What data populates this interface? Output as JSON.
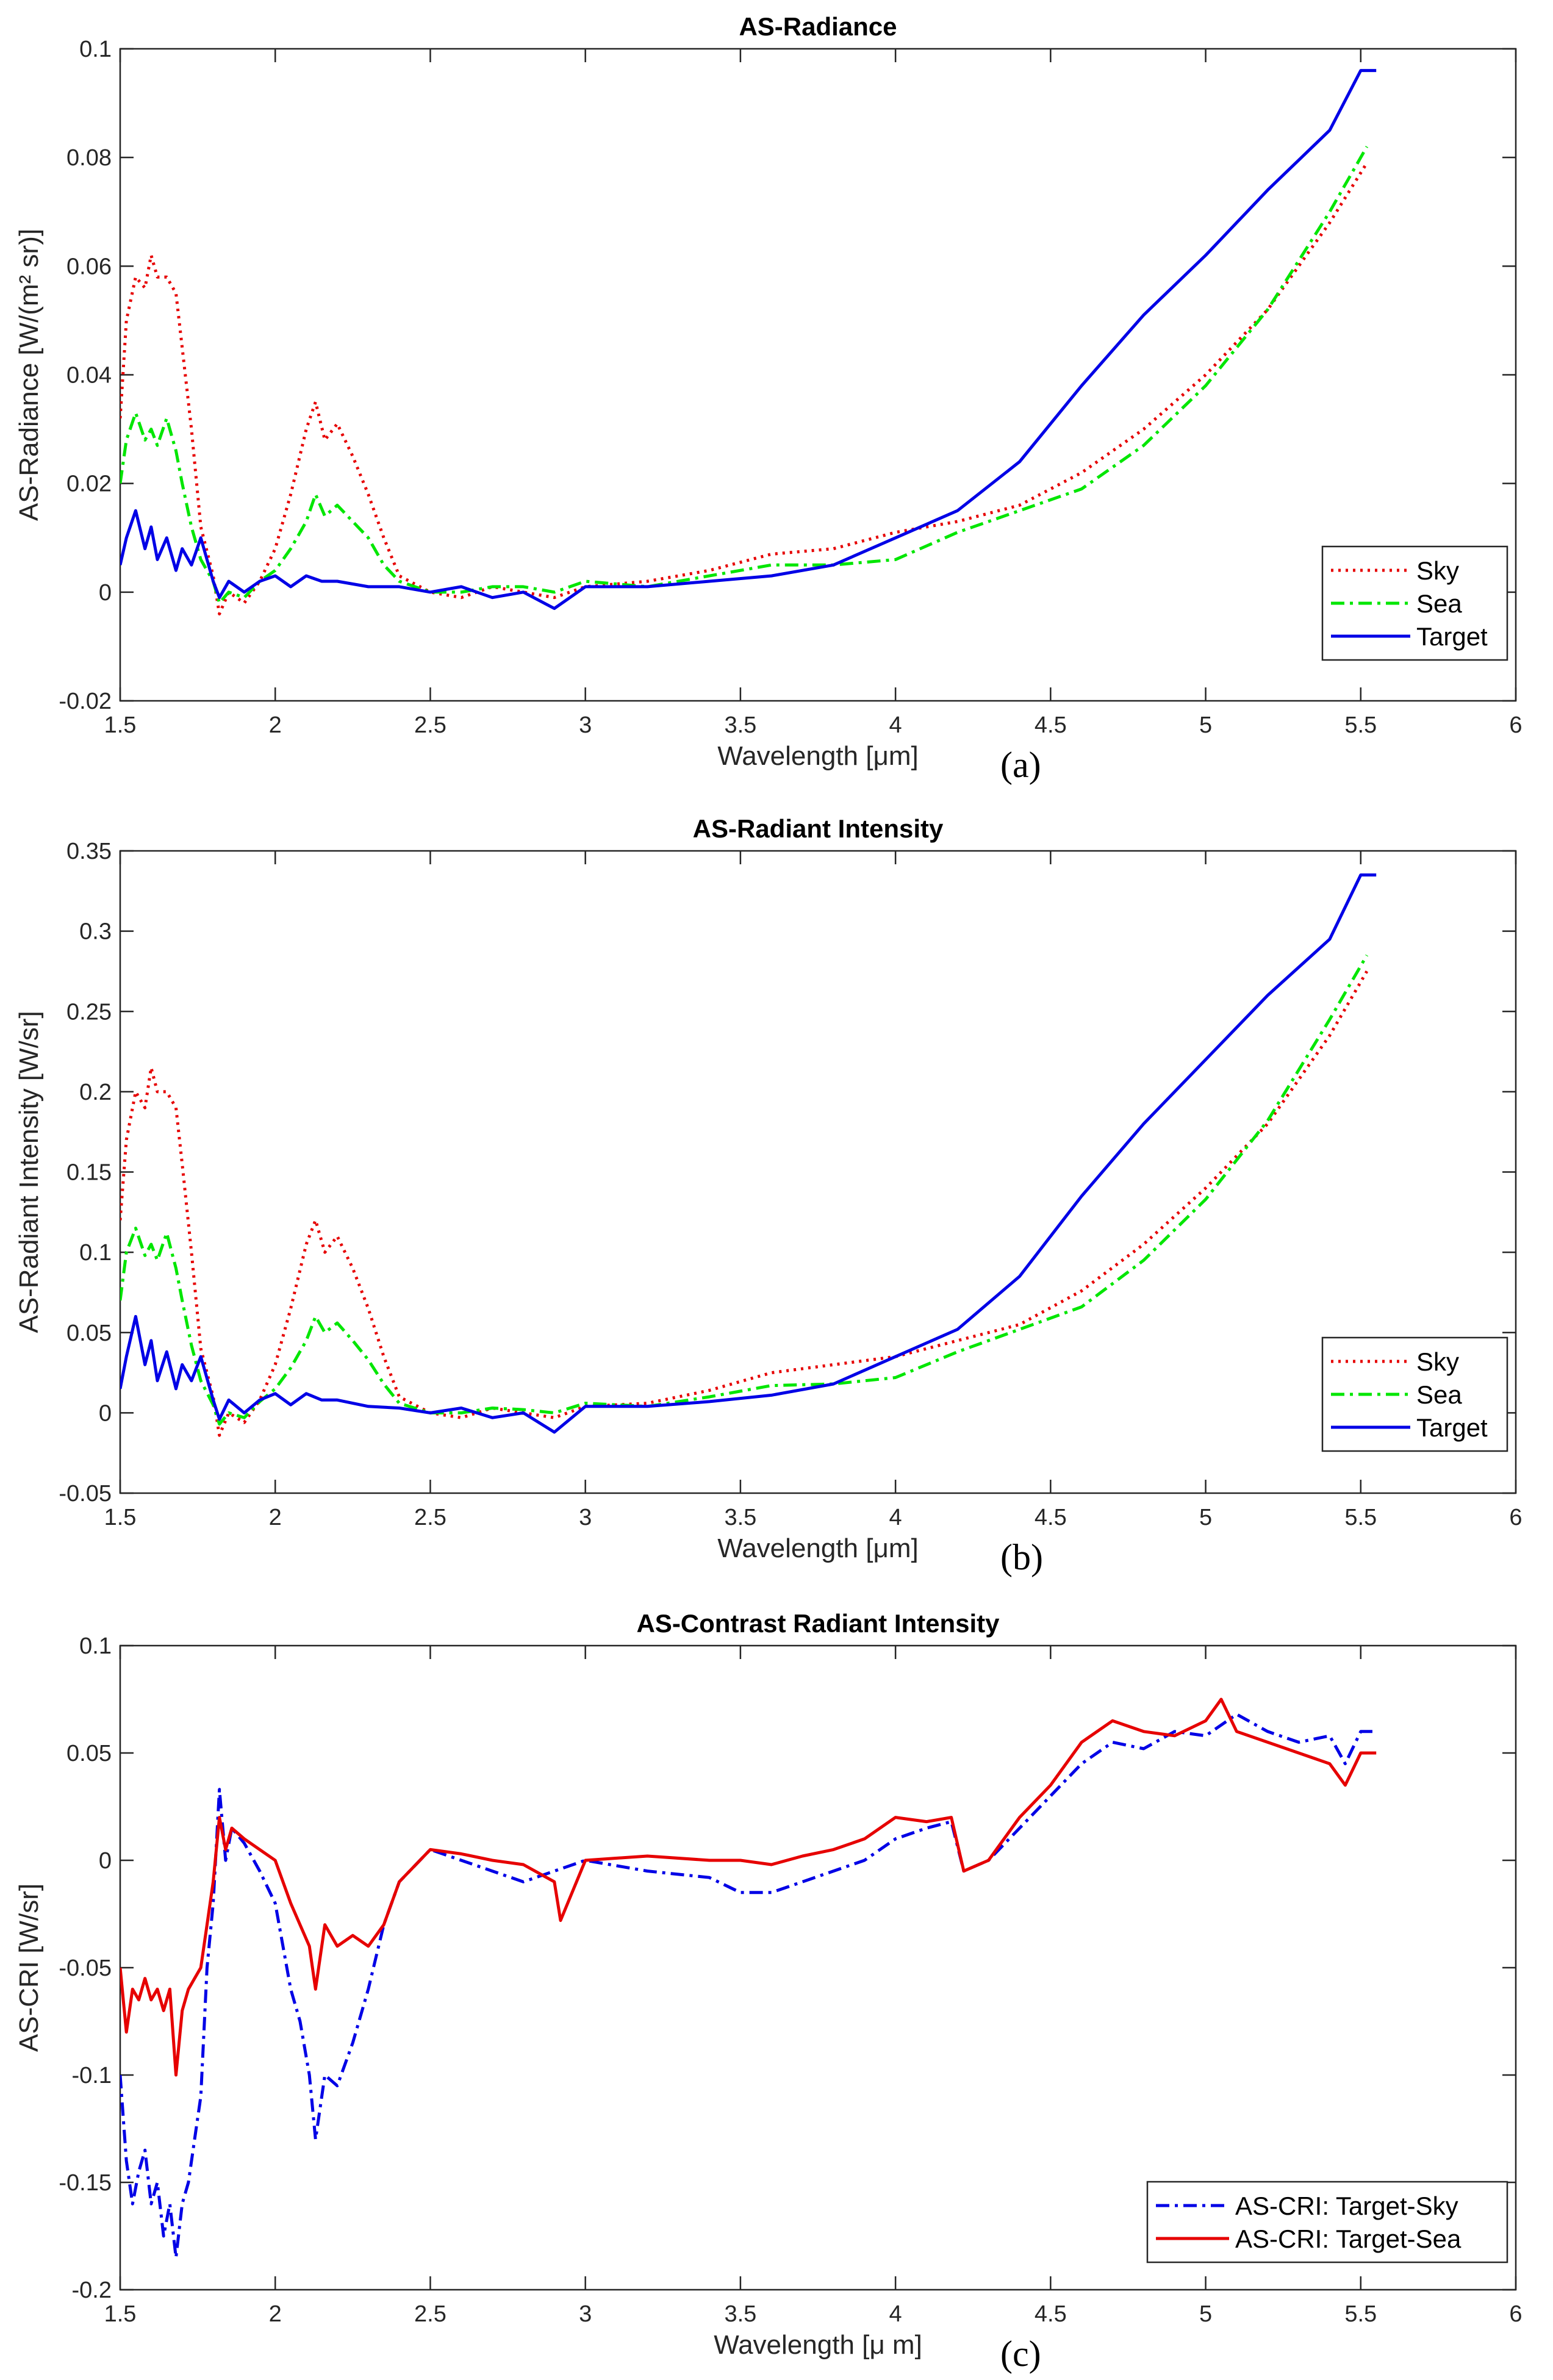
{
  "chart_data": [
    {
      "type": "line",
      "title": "AS-Radiance",
      "xlabel": "Wavelength [μm]",
      "ylabel": "AS-Radiance [W/(m² sr)]",
      "panel_label": "(a)",
      "xlim": [
        1.5,
        6
      ],
      "ylim": [
        -0.02,
        0.1
      ],
      "xticks": [
        1.5,
        2,
        2.5,
        3,
        3.5,
        4,
        4.5,
        5,
        5.5,
        6
      ],
      "xtick_labels": [
        "1.5",
        "2",
        "2.5",
        "3",
        "3.5",
        "4",
        "4.5",
        "5",
        "5.5",
        "6"
      ],
      "yticks": [
        -0.02,
        0,
        0.02,
        0.04,
        0.06,
        0.08,
        0.1
      ],
      "ytick_labels": [
        "-0.02",
        "0",
        "0.02",
        "0.04",
        "0.06",
        "0.08",
        "0.1"
      ],
      "legend_position": "bottom-right",
      "series": [
        {
          "name": "Sky",
          "color": "#e60000",
          "style": "dotted",
          "x": [
            1.5,
            1.52,
            1.55,
            1.58,
            1.6,
            1.62,
            1.65,
            1.68,
            1.7,
            1.73,
            1.76,
            1.8,
            1.82,
            1.85,
            1.9,
            1.95,
            2.0,
            2.05,
            2.1,
            2.13,
            2.16,
            2.2,
            2.25,
            2.3,
            2.35,
            2.4,
            2.5,
            2.6,
            2.7,
            2.8,
            2.9,
            3.0,
            3.2,
            3.4,
            3.6,
            3.8,
            4.0,
            4.2,
            4.4,
            4.6,
            4.8,
            5.0,
            5.2,
            5.4,
            5.52
          ],
          "y": [
            0.032,
            0.05,
            0.058,
            0.056,
            0.062,
            0.058,
            0.058,
            0.055,
            0.045,
            0.03,
            0.012,
            0.003,
            -0.004,
            0.0,
            -0.002,
            0.002,
            0.008,
            0.018,
            0.03,
            0.035,
            0.028,
            0.031,
            0.025,
            0.018,
            0.01,
            0.003,
            0.0,
            -0.001,
            0.001,
            0.0,
            -0.001,
            0.001,
            0.002,
            0.004,
            0.007,
            0.008,
            0.011,
            0.013,
            0.016,
            0.022,
            0.03,
            0.04,
            0.052,
            0.068,
            0.079
          ]
        },
        {
          "name": "Sea",
          "color": "#00e600",
          "style": "dashdot",
          "x": [
            1.5,
            1.52,
            1.55,
            1.58,
            1.6,
            1.62,
            1.65,
            1.68,
            1.7,
            1.73,
            1.76,
            1.8,
            1.82,
            1.85,
            1.9,
            1.95,
            2.0,
            2.05,
            2.1,
            2.13,
            2.16,
            2.2,
            2.25,
            2.3,
            2.35,
            2.4,
            2.5,
            2.6,
            2.7,
            2.8,
            2.9,
            3.0,
            3.2,
            3.4,
            3.6,
            3.8,
            4.0,
            4.2,
            4.4,
            4.6,
            4.8,
            5.0,
            5.2,
            5.4,
            5.52
          ],
          "y": [
            0.02,
            0.028,
            0.033,
            0.028,
            0.03,
            0.027,
            0.032,
            0.026,
            0.02,
            0.012,
            0.006,
            0.002,
            -0.002,
            0.0,
            -0.001,
            0.002,
            0.004,
            0.008,
            0.013,
            0.018,
            0.014,
            0.016,
            0.013,
            0.01,
            0.005,
            0.002,
            0.0,
            0.0,
            0.001,
            0.001,
            0.0,
            0.002,
            0.001,
            0.003,
            0.005,
            0.005,
            0.006,
            0.011,
            0.015,
            0.019,
            0.027,
            0.038,
            0.052,
            0.07,
            0.082
          ]
        },
        {
          "name": "Target",
          "color": "#0000e6",
          "style": "solid",
          "x": [
            1.5,
            1.52,
            1.55,
            1.58,
            1.6,
            1.62,
            1.65,
            1.68,
            1.7,
            1.73,
            1.76,
            1.8,
            1.82,
            1.85,
            1.9,
            1.95,
            2.0,
            2.05,
            2.1,
            2.15,
            2.2,
            2.3,
            2.4,
            2.5,
            2.6,
            2.7,
            2.8,
            2.9,
            3.0,
            3.2,
            3.4,
            3.6,
            3.8,
            4.0,
            4.2,
            4.4,
            4.6,
            4.8,
            5.0,
            5.2,
            5.4,
            5.5,
            5.55
          ],
          "y": [
            0.005,
            0.01,
            0.015,
            0.008,
            0.012,
            0.006,
            0.01,
            0.004,
            0.008,
            0.005,
            0.01,
            0.002,
            -0.001,
            0.002,
            0.0,
            0.002,
            0.003,
            0.001,
            0.003,
            0.002,
            0.002,
            0.001,
            0.001,
            0.0,
            0.001,
            -0.001,
            0.0,
            -0.003,
            0.001,
            0.001,
            0.002,
            0.003,
            0.005,
            0.01,
            0.015,
            0.024,
            0.038,
            0.051,
            0.062,
            0.074,
            0.085,
            0.096,
            0.096
          ]
        }
      ]
    },
    {
      "type": "line",
      "title": "AS-Radiant Intensity",
      "xlabel": "Wavelength [μm]",
      "ylabel": "AS-Radiant Intensity [W/sr]",
      "panel_label": "(b)",
      "xlim": [
        1.5,
        6
      ],
      "ylim": [
        -0.05,
        0.35
      ],
      "xticks": [
        1.5,
        2,
        2.5,
        3,
        3.5,
        4,
        4.5,
        5,
        5.5,
        6
      ],
      "xtick_labels": [
        "1.5",
        "2",
        "2.5",
        "3",
        "3.5",
        "4",
        "4.5",
        "5",
        "5.5",
        "6"
      ],
      "yticks": [
        -0.05,
        0,
        0.05,
        0.1,
        0.15,
        0.2,
        0.25,
        0.3,
        0.35
      ],
      "ytick_labels": [
        "-0.05",
        "0",
        "0.05",
        "0.1",
        "0.15",
        "0.2",
        "0.25",
        "0.3",
        "0.35"
      ],
      "legend_position": "bottom-right",
      "series": [
        {
          "name": "Sky",
          "color": "#e60000",
          "style": "dotted",
          "x": [
            1.5,
            1.52,
            1.55,
            1.58,
            1.6,
            1.62,
            1.65,
            1.68,
            1.7,
            1.73,
            1.76,
            1.8,
            1.82,
            1.85,
            1.9,
            1.95,
            2.0,
            2.05,
            2.1,
            2.13,
            2.16,
            2.2,
            2.25,
            2.3,
            2.35,
            2.4,
            2.5,
            2.6,
            2.7,
            2.8,
            2.9,
            3.0,
            3.2,
            3.4,
            3.6,
            3.8,
            4.0,
            4.2,
            4.4,
            4.6,
            4.8,
            5.0,
            5.2,
            5.4,
            5.52
          ],
          "y": [
            0.12,
            0.17,
            0.2,
            0.19,
            0.215,
            0.2,
            0.2,
            0.19,
            0.155,
            0.1,
            0.04,
            0.01,
            -0.014,
            0.0,
            -0.006,
            0.008,
            0.03,
            0.065,
            0.105,
            0.12,
            0.1,
            0.11,
            0.09,
            0.065,
            0.035,
            0.01,
            0.0,
            -0.003,
            0.003,
            0.0,
            -0.003,
            0.004,
            0.006,
            0.014,
            0.025,
            0.03,
            0.035,
            0.045,
            0.055,
            0.076,
            0.105,
            0.14,
            0.18,
            0.235,
            0.275
          ]
        },
        {
          "name": "Sea",
          "color": "#00e600",
          "style": "dashdot",
          "x": [
            1.5,
            1.52,
            1.55,
            1.58,
            1.6,
            1.62,
            1.65,
            1.68,
            1.7,
            1.73,
            1.76,
            1.8,
            1.82,
            1.85,
            1.9,
            1.95,
            2.0,
            2.05,
            2.1,
            2.13,
            2.16,
            2.2,
            2.25,
            2.3,
            2.35,
            2.4,
            2.5,
            2.6,
            2.7,
            2.8,
            2.9,
            3.0,
            3.2,
            3.4,
            3.6,
            3.8,
            4.0,
            4.2,
            4.4,
            4.6,
            4.8,
            5.0,
            5.2,
            5.4,
            5.52
          ],
          "y": [
            0.07,
            0.1,
            0.115,
            0.098,
            0.105,
            0.095,
            0.112,
            0.09,
            0.07,
            0.042,
            0.02,
            0.005,
            -0.007,
            0.0,
            -0.003,
            0.007,
            0.015,
            0.028,
            0.045,
            0.06,
            0.05,
            0.056,
            0.045,
            0.033,
            0.018,
            0.006,
            0.0,
            0.0,
            0.003,
            0.002,
            0.0,
            0.006,
            0.004,
            0.01,
            0.017,
            0.018,
            0.022,
            0.038,
            0.052,
            0.066,
            0.095,
            0.133,
            0.182,
            0.245,
            0.285
          ]
        },
        {
          "name": "Target",
          "color": "#0000e6",
          "style": "solid",
          "x": [
            1.5,
            1.52,
            1.55,
            1.58,
            1.6,
            1.62,
            1.65,
            1.68,
            1.7,
            1.73,
            1.76,
            1.8,
            1.82,
            1.85,
            1.9,
            1.95,
            2.0,
            2.05,
            2.1,
            2.15,
            2.2,
            2.3,
            2.4,
            2.5,
            2.6,
            2.7,
            2.8,
            2.9,
            3.0,
            3.2,
            3.4,
            3.6,
            3.8,
            4.0,
            4.2,
            4.4,
            4.6,
            4.8,
            5.0,
            5.2,
            5.4,
            5.5,
            5.55
          ],
          "y": [
            0.015,
            0.035,
            0.06,
            0.03,
            0.045,
            0.02,
            0.038,
            0.015,
            0.03,
            0.02,
            0.035,
            0.008,
            -0.004,
            0.008,
            0.0,
            0.008,
            0.012,
            0.005,
            0.012,
            0.008,
            0.008,
            0.004,
            0.003,
            0.0,
            0.003,
            -0.003,
            0.0,
            -0.012,
            0.004,
            0.004,
            0.007,
            0.011,
            0.018,
            0.035,
            0.052,
            0.085,
            0.135,
            0.18,
            0.22,
            0.26,
            0.295,
            0.335,
            0.335
          ]
        }
      ]
    },
    {
      "type": "line",
      "title": "AS-Contrast Radiant Intensity",
      "xlabel": "Wavelength [μ m]",
      "ylabel": "AS-CRI [W/sr]",
      "panel_label": "(c)",
      "xlim": [
        1.5,
        6
      ],
      "ylim": [
        -0.2,
        0.1
      ],
      "xticks": [
        1.5,
        2,
        2.5,
        3,
        3.5,
        4,
        4.5,
        5,
        5.5,
        6
      ],
      "xtick_labels": [
        "1.5",
        "2",
        "2.5",
        "3",
        "3.5",
        "4",
        "4.5",
        "5",
        "5.5",
        "6"
      ],
      "yticks": [
        -0.2,
        -0.15,
        -0.1,
        -0.05,
        0,
        0.05,
        0.1
      ],
      "ytick_labels": [
        "-0.2",
        "-0.15",
        "-0.1",
        "-0.05",
        "0",
        "0.05",
        "0.1"
      ],
      "legend_position": "bottom-right",
      "series": [
        {
          "name": "AS-CRI: Target-Sky",
          "color": "#0000e6",
          "style": "dashdot",
          "x": [
            1.5,
            1.52,
            1.54,
            1.56,
            1.58,
            1.6,
            1.62,
            1.64,
            1.66,
            1.68,
            1.7,
            1.72,
            1.74,
            1.76,
            1.78,
            1.8,
            1.82,
            1.84,
            1.86,
            1.9,
            1.95,
            2.0,
            2.05,
            2.08,
            2.11,
            2.13,
            2.16,
            2.2,
            2.25,
            2.3,
            2.35,
            2.4,
            2.5,
            2.6,
            2.7,
            2.8,
            2.9,
            3.0,
            3.2,
            3.4,
            3.5,
            3.6,
            3.7,
            3.8,
            3.9,
            4.0,
            4.1,
            4.18,
            4.22,
            4.3,
            4.4,
            4.5,
            4.6,
            4.7,
            4.8,
            4.9,
            5.0,
            5.1,
            5.2,
            5.3,
            5.4,
            5.45,
            5.5,
            5.55
          ],
          "y": [
            -0.1,
            -0.14,
            -0.16,
            -0.145,
            -0.135,
            -0.16,
            -0.15,
            -0.175,
            -0.16,
            -0.185,
            -0.16,
            -0.15,
            -0.13,
            -0.11,
            -0.05,
            -0.02,
            0.033,
            0.0,
            0.015,
            0.008,
            -0.005,
            -0.02,
            -0.06,
            -0.075,
            -0.1,
            -0.13,
            -0.1,
            -0.105,
            -0.085,
            -0.06,
            -0.03,
            -0.01,
            0.005,
            0.0,
            -0.005,
            -0.01,
            -0.005,
            0.0,
            -0.005,
            -0.008,
            -0.015,
            -0.015,
            -0.01,
            -0.005,
            0.0,
            0.01,
            0.015,
            0.018,
            -0.005,
            0.0,
            0.015,
            0.03,
            0.045,
            0.055,
            0.052,
            0.06,
            0.058,
            0.068,
            0.06,
            0.055,
            0.058,
            0.045,
            0.06,
            0.06
          ]
        },
        {
          "name": "AS-CRI: Target-Sea",
          "color": "#e60000",
          "style": "solid",
          "x": [
            1.5,
            1.52,
            1.54,
            1.56,
            1.58,
            1.6,
            1.62,
            1.64,
            1.66,
            1.68,
            1.7,
            1.72,
            1.74,
            1.76,
            1.78,
            1.8,
            1.82,
            1.84,
            1.86,
            1.9,
            1.95,
            2.0,
            2.05,
            2.08,
            2.11,
            2.13,
            2.16,
            2.2,
            2.25,
            2.3,
            2.35,
            2.4,
            2.5,
            2.6,
            2.7,
            2.8,
            2.9,
            2.92,
            3.0,
            3.2,
            3.4,
            3.5,
            3.6,
            3.7,
            3.8,
            3.9,
            4.0,
            4.1,
            4.18,
            4.22,
            4.3,
            4.4,
            4.5,
            4.6,
            4.7,
            4.8,
            4.9,
            5.0,
            5.05,
            5.1,
            5.2,
            5.3,
            5.4,
            5.45,
            5.5,
            5.55
          ],
          "y": [
            -0.05,
            -0.08,
            -0.06,
            -0.065,
            -0.055,
            -0.065,
            -0.06,
            -0.07,
            -0.06,
            -0.1,
            -0.07,
            -0.06,
            -0.055,
            -0.05,
            -0.03,
            -0.01,
            0.02,
            0.005,
            0.015,
            0.01,
            0.005,
            0.0,
            -0.02,
            -0.03,
            -0.04,
            -0.06,
            -0.03,
            -0.04,
            -0.035,
            -0.04,
            -0.03,
            -0.01,
            0.005,
            0.003,
            0.0,
            -0.002,
            -0.01,
            -0.028,
            0.0,
            0.002,
            0.0,
            0.0,
            -0.002,
            0.002,
            0.005,
            0.01,
            0.02,
            0.018,
            0.02,
            -0.005,
            0.0,
            0.02,
            0.035,
            0.055,
            0.065,
            0.06,
            0.058,
            0.065,
            0.075,
            0.06,
            0.055,
            0.05,
            0.045,
            0.035,
            0.05,
            0.05
          ]
        }
      ]
    }
  ]
}
